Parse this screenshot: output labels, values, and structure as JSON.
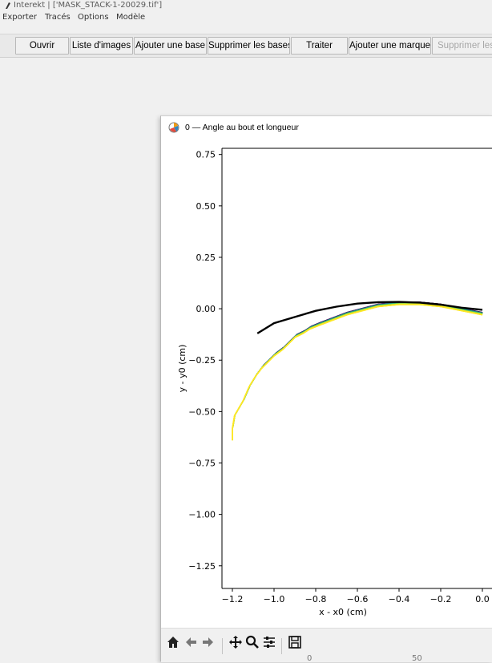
{
  "app": {
    "title": "Interekt | ['MASK_STACK-1-20029.tif']",
    "menu": [
      "Exporter",
      "Tracés",
      "Options",
      "Modèle"
    ]
  },
  "toolbar": {
    "buttons": [
      {
        "label": "Ouvrir",
        "enabled": true
      },
      {
        "label": "Liste d'images",
        "enabled": true
      },
      {
        "label": "Ajouter une base",
        "enabled": true
      },
      {
        "label": "Supprimer les bases",
        "enabled": true
      },
      {
        "label": "Traiter",
        "enabled": true
      },
      {
        "label": "Ajouter une marque",
        "enabled": true
      },
      {
        "label": "Supprimer les",
        "enabled": false
      }
    ]
  },
  "plot_window": {
    "title": "0 — Angle au bout et longueur",
    "bottom_partial_labels": [
      "0",
      "50"
    ]
  },
  "chart_data": {
    "type": "line",
    "xlabel": "x - x0 (cm)",
    "ylabel": "y - y0 (cm)",
    "xlim": [
      -1.25,
      0.05
    ],
    "ylim": [
      -1.36,
      0.78
    ],
    "xticks": [
      -1.2,
      -1.0,
      -0.8,
      -0.6,
      -0.4,
      -0.2,
      0.0
    ],
    "xticklabels": [
      "−1.2",
      "−1.0",
      "−0.8",
      "−0.6",
      "−0.4",
      "−0.2",
      "0.0"
    ],
    "yticks": [
      0.75,
      0.5,
      0.25,
      0.0,
      -0.25,
      -0.5,
      -0.75,
      -1.0,
      -1.25
    ],
    "yticklabels": [
      "0.75",
      "0.50",
      "0.25",
      "0.00",
      "−0.25",
      "−0.50",
      "−0.75",
      "−1.00",
      "−1.25"
    ],
    "colormap": [
      "#440154",
      "#3b528b",
      "#21908d",
      "#27ad81",
      "#5dc963",
      "#aadc32",
      "#fde725"
    ],
    "curve_tip_x": [
      -1.2,
      -1.2,
      -1.19,
      -1.15,
      -1.12,
      -1.09,
      -1.06,
      -1.03,
      -1.0,
      -0.96,
      -0.93,
      -0.9,
      -0.86,
      -0.83
    ],
    "curve_tip_y": [
      -0.64,
      -0.58,
      -0.52,
      -0.45,
      -0.38,
      -0.33,
      -0.29,
      -0.26,
      -0.23,
      -0.2,
      -0.17,
      -0.14,
      -0.12,
      -0.1
    ],
    "curve_tail_x": [
      -0.78,
      -0.65,
      -0.5,
      -0.4,
      -0.3,
      -0.2,
      -0.1,
      0.0
    ],
    "curve_tail_y": [
      -0.08,
      -0.03,
      0.01,
      0.02,
      0.02,
      0.01,
      -0.01,
      -0.03
    ],
    "final_curve_x": [
      -1.08,
      -1.0,
      -0.9,
      -0.8,
      -0.7,
      -0.6,
      -0.5,
      -0.4,
      -0.3,
      -0.2,
      -0.1,
      0.0
    ],
    "final_curve_y": [
      -0.12,
      -0.07,
      -0.04,
      -0.01,
      0.01,
      0.025,
      0.032,
      0.033,
      0.03,
      0.02,
      0.005,
      -0.005
    ],
    "grid": false
  }
}
